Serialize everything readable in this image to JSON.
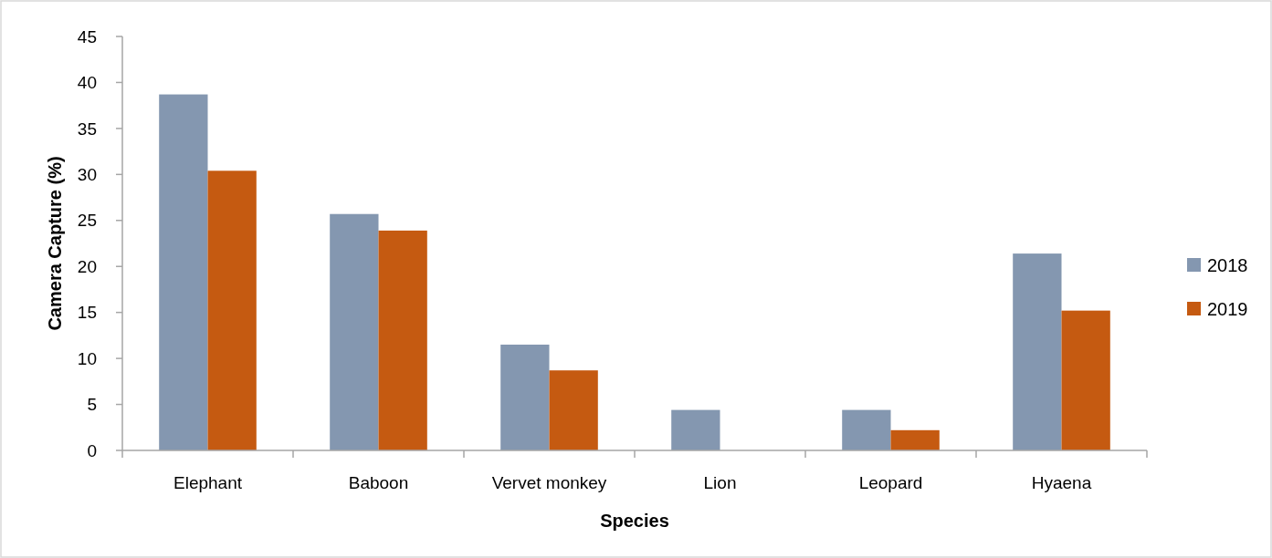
{
  "chart_data": {
    "type": "bar",
    "xlabel": "Species",
    "ylabel": "Camera Capture (%)",
    "categories": [
      "Elephant",
      "Baboon",
      "Vervet monkey",
      "Lion",
      "Leopard",
      "Hyaena"
    ],
    "series": [
      {
        "name": "2018",
        "color": "#8497b0",
        "values": [
          38.7,
          25.7,
          11.5,
          4.4,
          4.4,
          21.4
        ]
      },
      {
        "name": "2019",
        "color": "#c55a11",
        "values": [
          30.4,
          23.9,
          8.7,
          0,
          2.2,
          15.2
        ]
      }
    ],
    "ylim": [
      0,
      45
    ],
    "yticks": [
      0,
      5,
      10,
      15,
      20,
      25,
      30,
      35,
      40,
      45
    ],
    "legend": "right"
  }
}
